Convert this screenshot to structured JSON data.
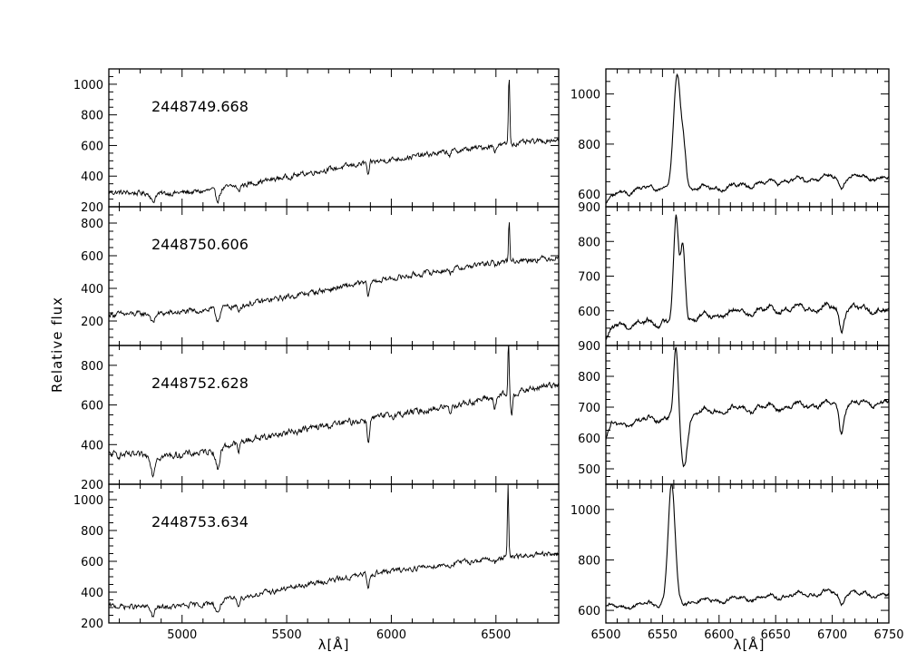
{
  "figure": {
    "ylabel": "Relative flux",
    "xlabel": "λ[Å]"
  },
  "chart_data": [
    {
      "type": "line",
      "panel": "full-1",
      "date": "2448749.668",
      "xlim": [
        4650,
        6800
      ],
      "ylim": [
        200,
        1100
      ],
      "xticks": [
        5000,
        5500,
        6000,
        6500
      ],
      "show_xtick_labels": false,
      "yticks": [
        200,
        400,
        600,
        800,
        1000
      ],
      "continuum": [
        [
          4650,
          295
        ],
        [
          4900,
          285
        ],
        [
          5100,
          300
        ],
        [
          5300,
          345
        ],
        [
          5600,
          420
        ],
        [
          5900,
          490
        ],
        [
          6200,
          545
        ],
        [
          6500,
          600
        ],
        [
          6800,
          640
        ]
      ],
      "absorption": [
        [
          4861,
          60,
          8
        ],
        [
          5170,
          70,
          10
        ],
        [
          5270,
          40,
          6
        ],
        [
          5890,
          90,
          5
        ],
        [
          6280,
          20,
          6
        ],
        [
          6495,
          30,
          5
        ]
      ],
      "emission": [
        [
          6563,
          440,
          3.5
        ]
      ]
    },
    {
      "type": "line",
      "panel": "full-2",
      "date": "2448750.606",
      "xlim": [
        4650,
        6800
      ],
      "ylim": [
        50,
        900
      ],
      "xticks": [
        5000,
        5500,
        6000,
        6500
      ],
      "show_xtick_labels": false,
      "yticks": [
        200,
        400,
        600,
        800
      ],
      "continuum": [
        [
          4650,
          240
        ],
        [
          4900,
          245
        ],
        [
          5100,
          265
        ],
        [
          5300,
          300
        ],
        [
          5600,
          370
        ],
        [
          5900,
          440
        ],
        [
          6200,
          500
        ],
        [
          6500,
          560
        ],
        [
          6800,
          590
        ]
      ],
      "absorption": [
        [
          4861,
          60,
          8
        ],
        [
          5170,
          70,
          10
        ],
        [
          5270,
          40,
          6
        ],
        [
          5890,
          100,
          5
        ],
        [
          6280,
          20,
          6
        ],
        [
          6495,
          30,
          5
        ]
      ],
      "emission": [
        [
          6563,
          260,
          3
        ]
      ]
    },
    {
      "type": "line",
      "panel": "full-3",
      "date": "2448752.628",
      "xlim": [
        4650,
        6800
      ],
      "ylim": [
        200,
        900
      ],
      "xticks": [
        5000,
        5500,
        6000,
        6500
      ],
      "show_xtick_labels": false,
      "yticks": [
        200,
        400,
        600,
        800
      ],
      "continuum": [
        [
          4650,
          350
        ],
        [
          4900,
          340
        ],
        [
          5100,
          360
        ],
        [
          5300,
          420
        ],
        [
          5600,
          480
        ],
        [
          5900,
          530
        ],
        [
          6200,
          580
        ],
        [
          6500,
          640
        ],
        [
          6800,
          710
        ]
      ],
      "absorption": [
        [
          4861,
          90,
          8
        ],
        [
          5170,
          100,
          10
        ],
        [
          5270,
          50,
          6
        ],
        [
          5890,
          120,
          5
        ],
        [
          6280,
          30,
          6
        ],
        [
          6495,
          60,
          5
        ],
        [
          6575,
          110,
          4
        ]
      ],
      "emission": [
        [
          6560,
          260,
          2.8
        ]
      ]
    },
    {
      "type": "line",
      "panel": "full-4",
      "date": "2448753.634",
      "xlim": [
        4650,
        6800
      ],
      "ylim": [
        200,
        1100
      ],
      "xticks": [
        5000,
        5500,
        6000,
        6500
      ],
      "show_xtick_labels": true,
      "yticks": [
        200,
        400,
        600,
        800,
        1000
      ],
      "continuum": [
        [
          4650,
          310
        ],
        [
          4900,
          300
        ],
        [
          5100,
          320
        ],
        [
          5300,
          370
        ],
        [
          5600,
          450
        ],
        [
          5900,
          520
        ],
        [
          6200,
          570
        ],
        [
          6500,
          620
        ],
        [
          6800,
          650
        ]
      ],
      "absorption": [
        [
          4861,
          60,
          8
        ],
        [
          5170,
          70,
          10
        ],
        [
          5270,
          40,
          6
        ],
        [
          5890,
          90,
          5
        ],
        [
          6280,
          20,
          6
        ],
        [
          6495,
          30,
          5
        ]
      ],
      "emission": [
        [
          6558,
          460,
          3
        ]
      ]
    },
    {
      "type": "line",
      "panel": "zoom-1",
      "xlim": [
        6500,
        6750
      ],
      "ylim": [
        550,
        1100
      ],
      "xticks": [
        6500,
        6550,
        6600,
        6650,
        6700,
        6750
      ],
      "show_xtick_labels": false,
      "yticks": [
        600,
        800,
        1000
      ],
      "continuum": [
        [
          6500,
          560
        ],
        [
          6510,
          605
        ],
        [
          6540,
          625
        ],
        [
          6600,
          625
        ],
        [
          6650,
          650
        ],
        [
          6700,
          670
        ],
        [
          6750,
          665
        ]
      ],
      "absorption": [
        [
          6708,
          40,
          2
        ]
      ],
      "emission": [
        [
          6563,
          445,
          3.2
        ],
        [
          6569,
          130,
          2
        ]
      ]
    },
    {
      "type": "line",
      "panel": "zoom-2",
      "xlim": [
        6500,
        6750
      ],
      "ylim": [
        500,
        900
      ],
      "xticks": [
        6500,
        6550,
        6600,
        6650,
        6700,
        6750
      ],
      "show_xtick_labels": false,
      "yticks": [
        600,
        700,
        800,
        900
      ],
      "continuum": [
        [
          6500,
          515
        ],
        [
          6510,
          560
        ],
        [
          6540,
          565
        ],
        [
          6600,
          590
        ],
        [
          6650,
          605
        ],
        [
          6700,
          610
        ],
        [
          6750,
          600
        ]
      ],
      "absorption": [
        [
          6708,
          60,
          2
        ]
      ],
      "emission": [
        [
          6562,
          285,
          2.2
        ],
        [
          6568,
          215,
          2
        ]
      ]
    },
    {
      "type": "line",
      "panel": "zoom-3",
      "xlim": [
        6500,
        6750
      ],
      "ylim": [
        450,
        900
      ],
      "xticks": [
        6500,
        6550,
        6600,
        6650,
        6700,
        6750
      ],
      "show_xtick_labels": false,
      "yticks": [
        500,
        600,
        700,
        800,
        900
      ],
      "continuum": [
        [
          6500,
          590
        ],
        [
          6505,
          640
        ],
        [
          6540,
          660
        ],
        [
          6600,
          690
        ],
        [
          6650,
          700
        ],
        [
          6700,
          710
        ],
        [
          6750,
          715
        ]
      ],
      "absorption": [
        [
          6569,
          160,
          3
        ],
        [
          6708,
          90,
          2
        ]
      ],
      "emission": [
        [
          6562,
          220,
          2
        ]
      ]
    },
    {
      "type": "line",
      "panel": "zoom-4",
      "xlim": [
        6500,
        6750
      ],
      "ylim": [
        550,
        1100
      ],
      "xticks": [
        6500,
        6550,
        6600,
        6650,
        6700,
        6750
      ],
      "show_xtick_labels": true,
      "yticks": [
        600,
        800,
        1000
      ],
      "continuum": [
        [
          6500,
          610
        ],
        [
          6540,
          625
        ],
        [
          6600,
          640
        ],
        [
          6650,
          655
        ],
        [
          6700,
          670
        ],
        [
          6750,
          660
        ]
      ],
      "absorption": [
        [
          6708,
          40,
          2
        ]
      ],
      "emission": [
        [
          6558,
          470,
          3
        ]
      ]
    }
  ]
}
